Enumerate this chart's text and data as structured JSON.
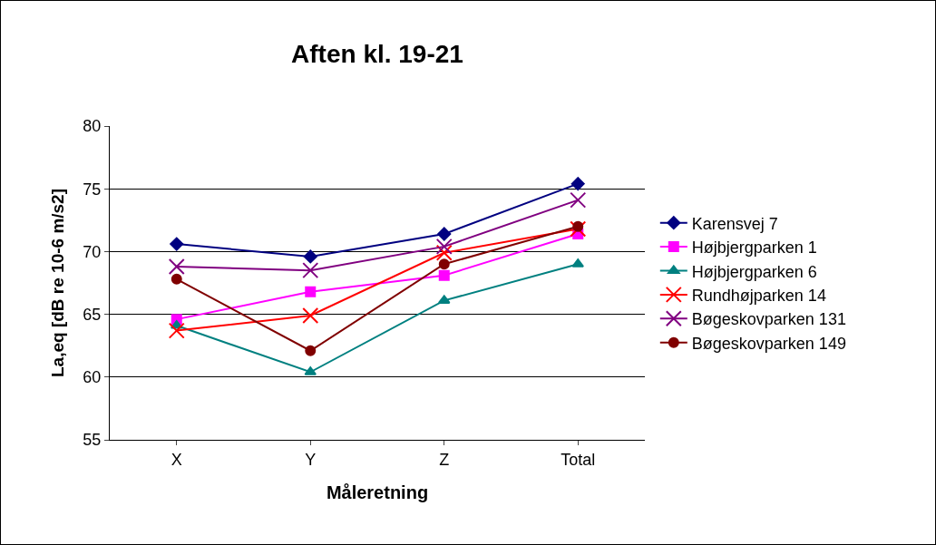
{
  "chart_data": {
    "type": "line",
    "title": "Aften kl. 19-21",
    "xlabel": "Måleretning",
    "ylabel": "La,eq [dB re 10-6 m/s2]",
    "categories": [
      "X",
      "Y",
      "Z",
      "Total"
    ],
    "ylim": [
      55,
      80
    ],
    "yticks": [
      55,
      60,
      65,
      70,
      75,
      80
    ],
    "grid": "y",
    "legend": "right",
    "series": [
      {
        "name": "Karensvej 7",
        "color": "#000080",
        "marker": "diamond",
        "values": [
          70.6,
          69.6,
          71.4,
          75.4
        ]
      },
      {
        "name": "Højbjergparken 1",
        "color": "#ff00ff",
        "marker": "square",
        "values": [
          64.6,
          66.8,
          68.1,
          71.4
        ]
      },
      {
        "name": "Højbjergparken 6",
        "color": "#008080",
        "marker": "triangle",
        "values": [
          64.1,
          60.4,
          66.1,
          69.0
        ]
      },
      {
        "name": "Rundhøjparken 14",
        "color": "#ff0000",
        "marker": "cross",
        "values": [
          63.7,
          64.9,
          69.9,
          71.8
        ]
      },
      {
        "name": "Bøgeskovparken 131",
        "color": "#800080",
        "marker": "cross",
        "values": [
          68.8,
          68.5,
          70.4,
          74.1
        ]
      },
      {
        "name": "Bøgeskovparken 149",
        "color": "#800000",
        "marker": "circle",
        "values": [
          67.8,
          62.1,
          69.0,
          72.0
        ]
      }
    ]
  }
}
